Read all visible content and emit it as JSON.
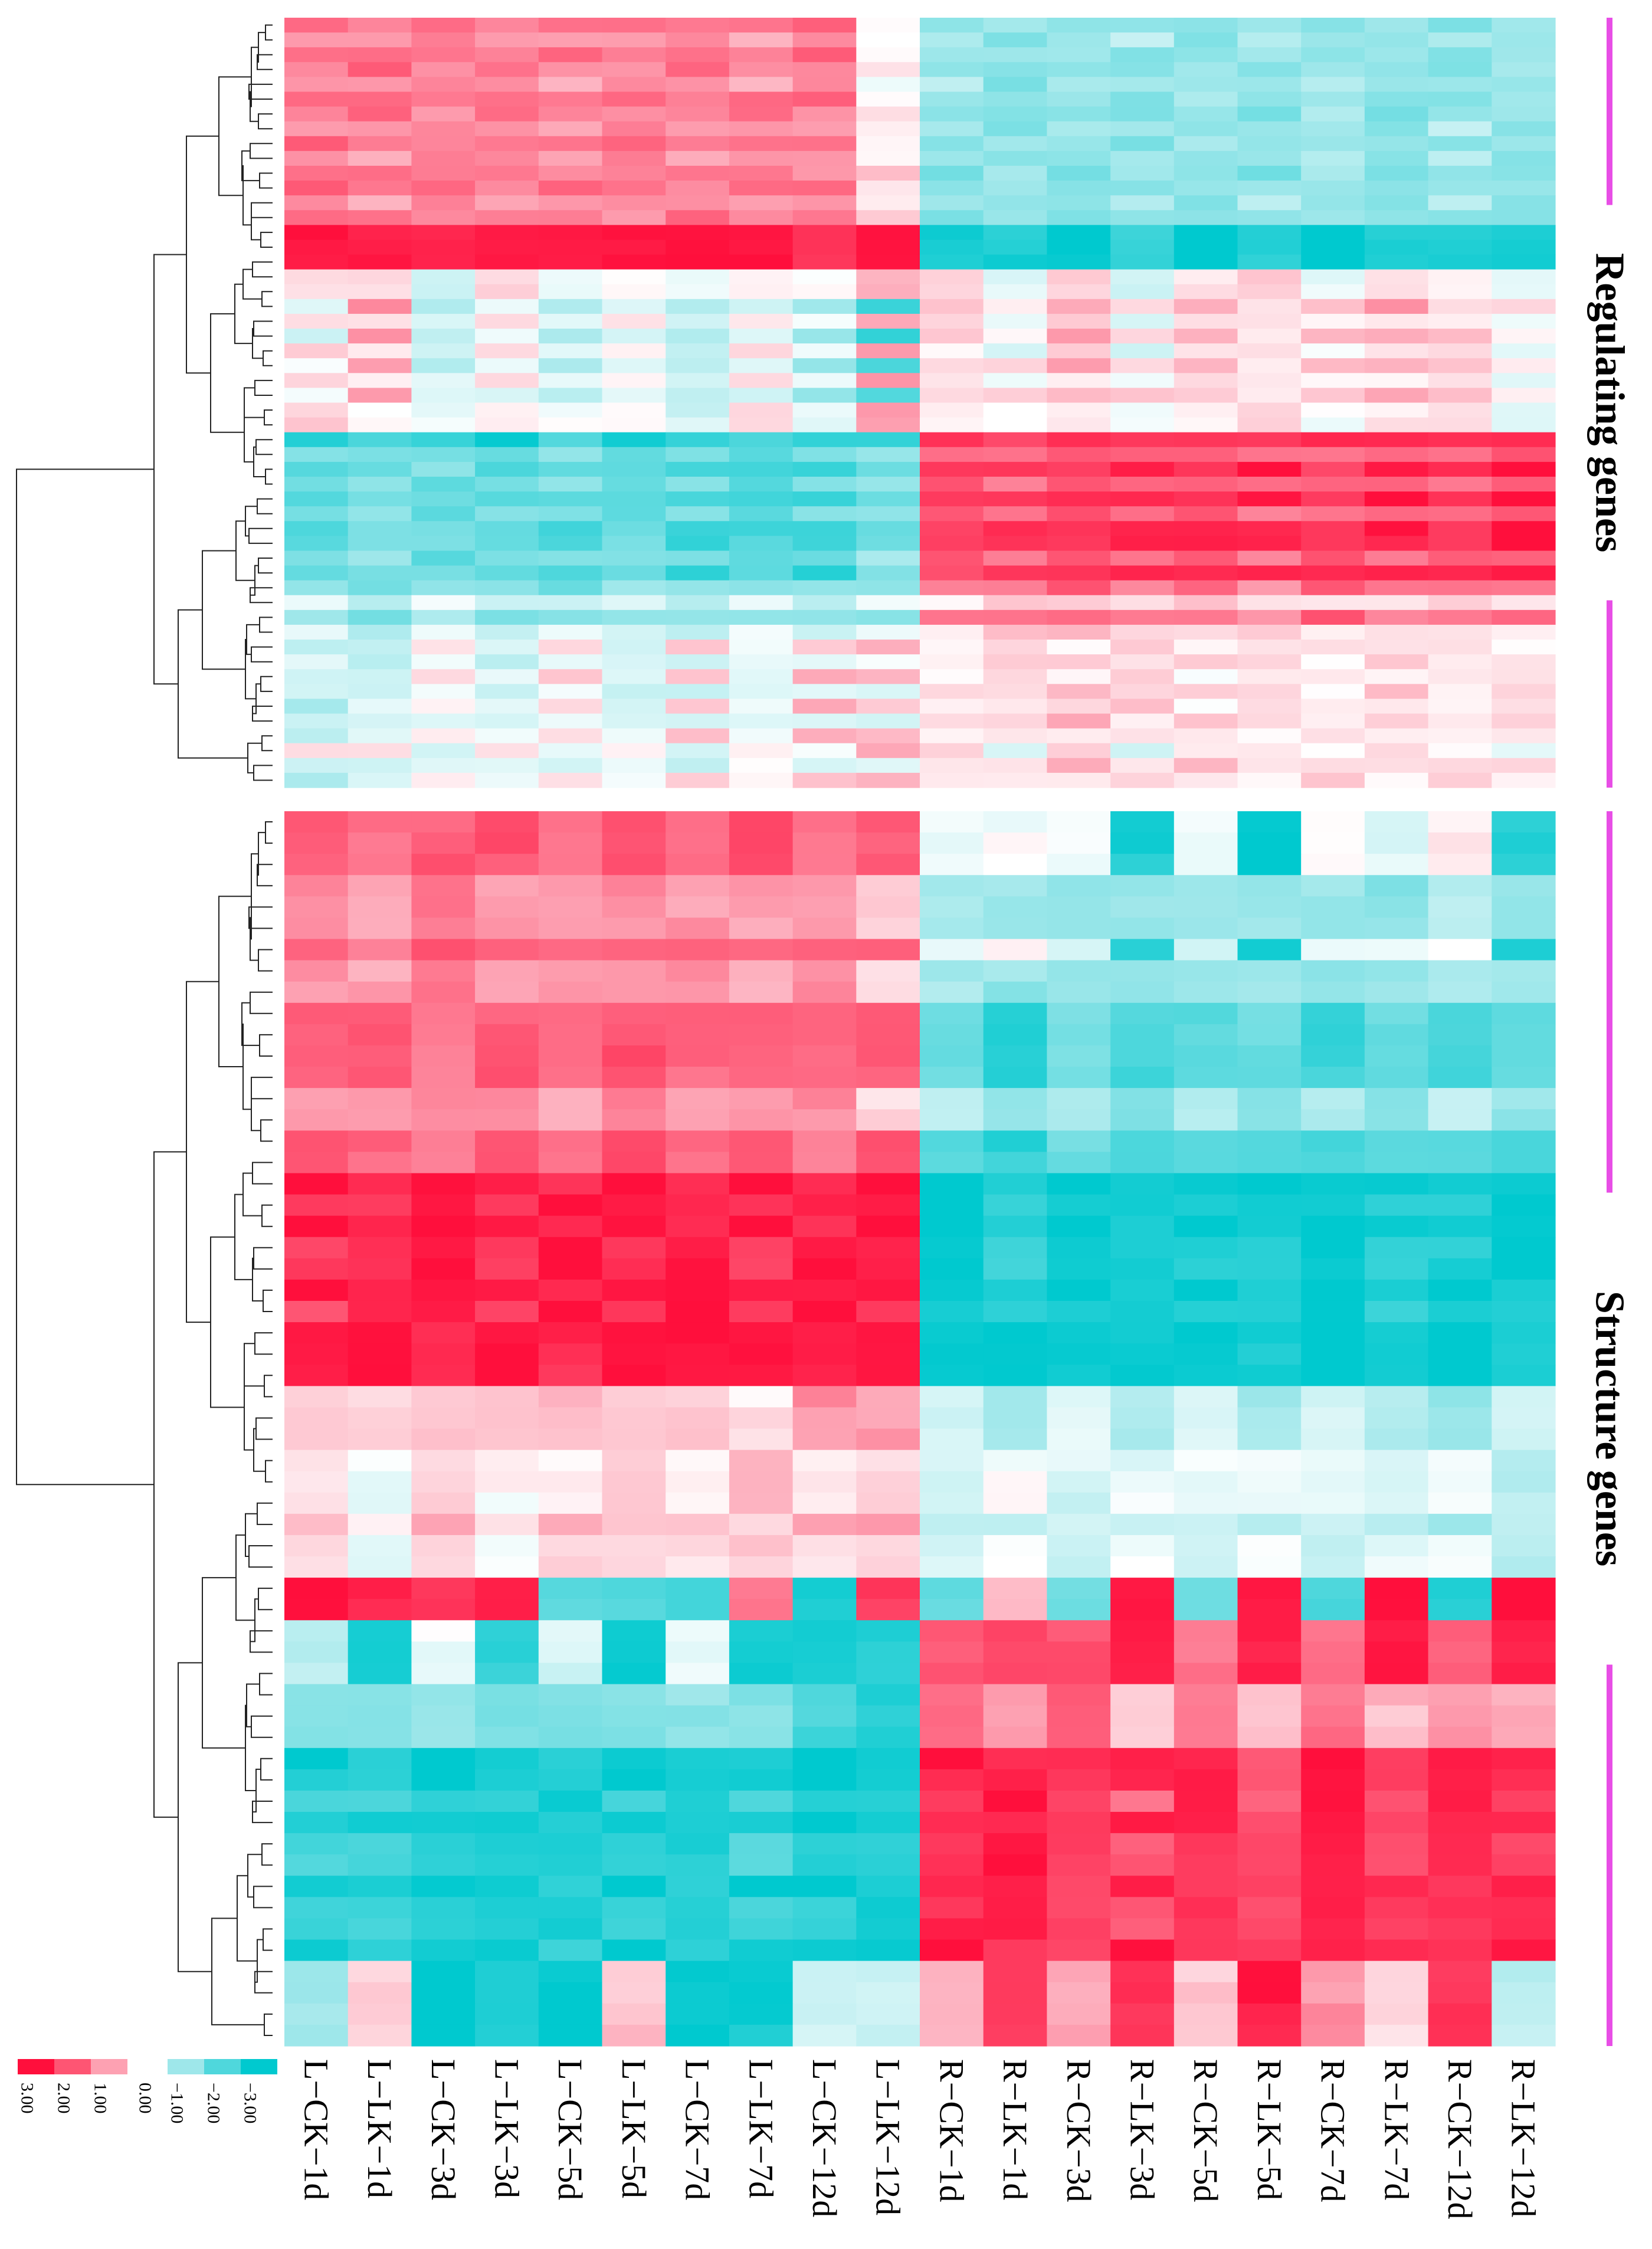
{
  "chart_data": {
    "type": "heatmap",
    "columns": [
      "L−CK−1d",
      "L−LK−1d",
      "L−CK−3d",
      "L−LK−3d",
      "L−CK−5d",
      "L−LK−5d",
      "L−CK−7d",
      "L−LK−7d",
      "L−CK−12d",
      "L−LK−12d",
      "R−CK−1d",
      "R−LK−1d",
      "R−CK−3d",
      "R−LK−3d",
      "R−CK−5d",
      "R−LK−5d",
      "R−CK−7d",
      "R−LK−7d",
      "R−CK−12d",
      "R−LK−12d"
    ],
    "groups": [
      {
        "label": "Regulating genes",
        "row_patterns": [
          [
            1.8,
            1.6,
            1.6,
            1.4,
            1.6,
            1.7,
            1.5,
            1.6,
            1.8,
            0.1,
            -1.2,
            -1.0,
            -1.1,
            -1.3,
            -1.0,
            -1.1,
            -1.2,
            -1.1,
            -1.3,
            -1.0
          ],
          [
            1.2,
            1.0,
            1.4,
            1.2,
            1.0,
            1.3,
            1.1,
            1.0,
            1.2,
            0.0,
            -0.9,
            -1.3,
            -1.0,
            -0.8,
            -1.2,
            -0.9,
            -1.0,
            -1.2,
            -0.8,
            -1.1
          ],
          [
            1.5,
            1.7,
            1.3,
            1.6,
            1.4,
            1.2,
            1.6,
            1.5,
            1.3,
            0.5,
            -1.4,
            -1.1,
            -1.3,
            -1.2,
            -1.1,
            -1.4,
            -1.0,
            -1.3,
            -1.2,
            -1.1
          ],
          [
            3.0,
            2.8,
            2.6,
            3.0,
            2.7,
            3.0,
            2.8,
            3.0,
            2.4,
            3.0,
            -2.8,
            -2.6,
            -3.0,
            -2.4,
            -3.0,
            -2.6,
            -3.0,
            -2.7,
            -2.5,
            -2.8
          ],
          [
            0.4,
            0.2,
            -0.3,
            0.3,
            -0.2,
            0.1,
            -0.4,
            0.2,
            -0.1,
            1.0,
            0.3,
            -0.2,
            0.4,
            -0.3,
            0.2,
            0.4,
            -0.1,
            0.3,
            0.2,
            -0.3
          ],
          [
            -0.3,
            1.2,
            -0.6,
            -0.4,
            -0.8,
            -0.5,
            -0.6,
            -0.5,
            -1.0,
            -2.2,
            0.6,
            0.3,
            0.9,
            0.5,
            0.7,
            0.4,
            0.6,
            1.0,
            0.5,
            0.3
          ],
          [
            -2.6,
            -2.0,
            -2.4,
            -2.8,
            -2.2,
            -2.6,
            -2.4,
            -2.0,
            -2.6,
            -2.4,
            2.6,
            2.0,
            2.8,
            2.4,
            2.6,
            2.2,
            2.8,
            2.4,
            2.6,
            2.8
          ],
          [
            -1.4,
            -1.2,
            -1.7,
            -1.5,
            -1.3,
            -1.6,
            -1.4,
            -1.8,
            -1.5,
            -1.0,
            1.8,
            1.6,
            2.0,
            1.7,
            1.9,
            1.5,
            1.8,
            1.6,
            1.7,
            1.9
          ],
          [
            -1.8,
            -1.6,
            -1.4,
            -1.9,
            -2.0,
            -1.7,
            -2.2,
            -2.0,
            -2.4,
            -1.6,
            2.2,
            2.6,
            2.4,
            2.8,
            2.6,
            2.8,
            2.4,
            2.8,
            2.6,
            3.0
          ],
          [
            -1.2,
            -1.4,
            -1.0,
            -1.3,
            -1.5,
            -1.2,
            -1.0,
            -1.4,
            -1.1,
            -1.3,
            1.6,
            1.4,
            1.8,
            1.5,
            1.7,
            1.3,
            1.9,
            1.6,
            1.4,
            1.8
          ],
          [
            -0.4,
            -0.6,
            -0.2,
            -0.5,
            -0.3,
            -0.4,
            -0.6,
            -0.2,
            -0.5,
            -0.3,
            0.2,
            0.5,
            0.8,
            0.3,
            0.6,
            0.4,
            0.2,
            0.5,
            0.3,
            0.4
          ],
          [
            -0.7,
            -0.5,
            0.3,
            -0.2,
            0.4,
            -0.3,
            0.6,
            -0.1,
            0.7,
            0.8,
            0.1,
            0.3,
            0.2,
            0.5,
            0.1,
            0.2,
            0.4,
            0.1,
            0.3,
            0.2
          ]
        ],
        "row_order": [
          0,
          1,
          0,
          2,
          1,
          0,
          2,
          1,
          0,
          1,
          2,
          0,
          1,
          2,
          3,
          3,
          3,
          4,
          4,
          5,
          4,
          5,
          4,
          5,
          4,
          5,
          4,
          4,
          6,
          7,
          8,
          7,
          8,
          7,
          8,
          8,
          7,
          8,
          9,
          10,
          9,
          10,
          11,
          10,
          11,
          10,
          11,
          10,
          11,
          4,
          10,
          11
        ]
      },
      {
        "label": "Structure genes",
        "row_patterns": [
          [
            1.8,
            1.6,
            1.9,
            2.0,
            1.7,
            1.9,
            1.8,
            2.0,
            1.7,
            1.8,
            -0.1,
            0.0,
            -0.2,
            -2.6,
            -0.3,
            -2.8,
            0.0,
            -0.2,
            0.1,
            -2.4
          ],
          [
            1.2,
            1.0,
            1.4,
            1.2,
            1.0,
            1.3,
            1.1,
            1.0,
            1.2,
            0.4,
            -0.8,
            -1.1,
            -1.0,
            -1.2,
            -0.9,
            -1.1,
            -1.0,
            -1.2,
            -0.8,
            -1.0
          ],
          [
            2.0,
            1.8,
            1.6,
            1.9,
            1.7,
            2.0,
            1.8,
            1.9,
            1.6,
            2.0,
            -1.8,
            -2.4,
            -1.6,
            -2.0,
            -1.9,
            -1.7,
            -2.2,
            -1.8,
            -2.0,
            -1.9
          ],
          [
            3.0,
            2.8,
            2.8,
            3.0,
            2.6,
            3.0,
            2.8,
            3.0,
            2.6,
            3.0,
            -3.0,
            -2.8,
            -3.0,
            -2.8,
            -3.0,
            -2.8,
            -3.0,
            -2.8,
            -3.0,
            -2.8
          ],
          [
            2.2,
            2.6,
            2.8,
            2.4,
            3.0,
            2.6,
            2.8,
            2.4,
            3.0,
            2.6,
            -2.8,
            -2.4,
            -2.6,
            -2.8,
            -2.4,
            -2.6,
            -2.8,
            -2.4,
            -2.6,
            -2.8
          ],
          [
            0.6,
            0.3,
            0.8,
            0.5,
            0.9,
            0.4,
            0.7,
            0.3,
            1.2,
            1.0,
            -0.6,
            -0.8,
            -0.4,
            -0.7,
            -0.5,
            -0.8,
            -0.6,
            -0.7,
            -1.2,
            -0.5
          ],
          [
            0.2,
            -0.1,
            0.4,
            0.1,
            0.3,
            0.5,
            0.2,
            0.6,
            0.4,
            0.3,
            -0.3,
            -0.1,
            -0.4,
            -0.2,
            -0.3,
            -0.1,
            -0.4,
            -0.2,
            -0.3,
            -0.6
          ],
          [
            3.0,
            2.8,
            2.4,
            2.8,
            -2.0,
            -1.8,
            -2.4,
            1.6,
            -2.8,
            2.4,
            -1.8,
            0.6,
            -1.4,
            2.8,
            -1.6,
            2.8,
            -2.0,
            2.8,
            -2.4,
            2.8
          ],
          [
            -0.6,
            -2.8,
            -0.2,
            -2.4,
            -0.4,
            -2.8,
            -0.3,
            -2.6,
            -2.8,
            -2.4,
            1.8,
            2.4,
            2.0,
            2.8,
            1.6,
            2.6,
            1.8,
            2.8,
            2.0,
            2.6
          ],
          [
            -1.2,
            -1.4,
            -1.0,
            -1.6,
            -1.3,
            -1.5,
            -1.1,
            -1.4,
            -2.0,
            -2.4,
            1.6,
            1.2,
            1.8,
            0.6,
            1.4,
            0.8,
            1.6,
            0.7,
            1.2,
            0.8
          ],
          [
            -2.8,
            -2.6,
            -3.0,
            -2.8,
            -2.4,
            -3.0,
            -2.6,
            -2.8,
            -3.0,
            -2.8,
            2.8,
            2.6,
            2.4,
            2.8,
            2.6,
            2.2,
            2.8,
            2.4,
            2.6,
            2.8
          ],
          [
            -2.2,
            -2.0,
            -2.6,
            -2.4,
            -2.8,
            -2.2,
            -2.6,
            -2.0,
            -2.4,
            -2.6,
            2.6,
            2.8,
            2.4,
            1.8,
            2.6,
            2.0,
            2.8,
            2.2,
            2.6,
            2.4
          ],
          [
            -0.8,
            0.4,
            -3.0,
            -2.8,
            -3.0,
            0.6,
            -3.0,
            -2.8,
            -0.6,
            -0.4,
            0.6,
            2.4,
            0.8,
            2.6,
            0.5,
            2.8,
            1.2,
            0.4,
            2.6,
            -0.8
          ]
        ],
        "row_order": [
          0,
          0,
          0,
          1,
          1,
          1,
          0,
          1,
          1,
          2,
          2,
          2,
          2,
          1,
          1,
          2,
          2,
          3,
          4,
          3,
          4,
          4,
          3,
          4,
          3,
          3,
          3,
          5,
          5,
          5,
          6,
          6,
          6,
          5,
          6,
          6,
          7,
          7,
          8,
          8,
          8,
          9,
          9,
          9,
          10,
          10,
          11,
          10,
          11,
          11,
          10,
          11,
          11,
          10,
          12,
          12,
          12,
          12
        ]
      }
    ],
    "color_scale": {
      "min": -3.0,
      "max": 3.0,
      "ticks": [
        {
          "label": "3.00",
          "value": 3.0,
          "color": "#ff0f3c"
        },
        {
          "label": "2.00",
          "value": 2.0,
          "color": "#fe5573"
        },
        {
          "label": "1.00",
          "value": 1.0,
          "color": "#fda1b2"
        },
        {
          "label": "0.00",
          "value": 0.0,
          "color": "#ffffff"
        },
        {
          "label": "−1.00",
          "value": -1.0,
          "color": "#9ee7ea"
        },
        {
          "label": "−2.00",
          "value": -2.0,
          "color": "#4fd7dc"
        },
        {
          "label": "−3.00",
          "value": -3.0,
          "color": "#00c9cf"
        }
      ]
    },
    "dendrogram": true,
    "accent_color": "#e84ee6"
  }
}
